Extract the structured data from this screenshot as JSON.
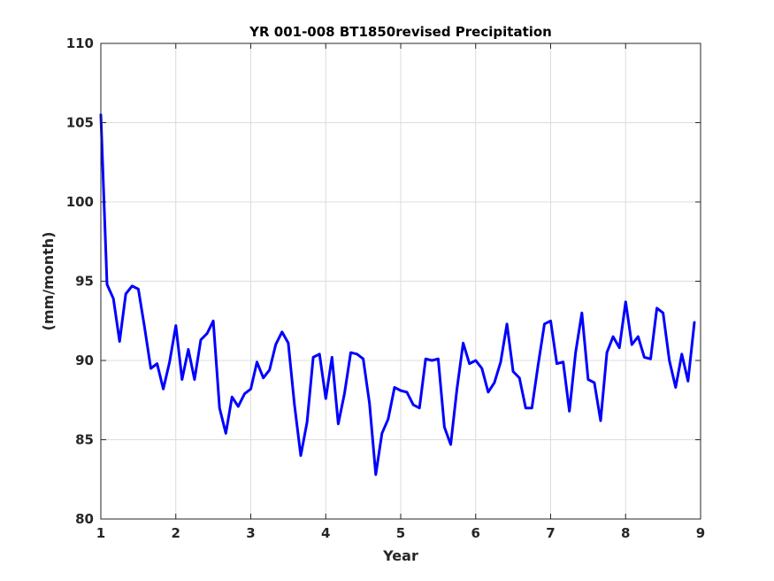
{
  "chart_data": {
    "type": "line",
    "title": "YR 001-008 BT1850revised Precipitation",
    "xlabel": "Year",
    "ylabel": "(mm/month)",
    "xlim": [
      1,
      9
    ],
    "ylim": [
      80,
      110
    ],
    "xticks": [
      1,
      2,
      3,
      4,
      5,
      6,
      7,
      8,
      9
    ],
    "yticks": [
      80,
      85,
      90,
      95,
      100,
      105,
      110
    ],
    "grid": true,
    "series": [
      {
        "color": "#0000ff",
        "x": [
          1.0,
          1.083,
          1.167,
          1.25,
          1.333,
          1.417,
          1.5,
          1.583,
          1.667,
          1.75,
          1.833,
          1.917,
          2.0,
          2.083,
          2.167,
          2.25,
          2.333,
          2.417,
          2.5,
          2.583,
          2.667,
          2.75,
          2.833,
          2.917,
          3.0,
          3.083,
          3.167,
          3.25,
          3.333,
          3.417,
          3.5,
          3.583,
          3.667,
          3.75,
          3.833,
          3.917,
          4.0,
          4.083,
          4.167,
          4.25,
          4.333,
          4.417,
          4.5,
          4.583,
          4.667,
          4.75,
          4.833,
          4.917,
          5.0,
          5.083,
          5.167,
          5.25,
          5.333,
          5.417,
          5.5,
          5.583,
          5.667,
          5.75,
          5.833,
          5.917,
          6.0,
          6.083,
          6.167,
          6.25,
          6.333,
          6.417,
          6.5,
          6.583,
          6.667,
          6.75,
          6.833,
          6.917,
          7.0,
          7.083,
          7.167,
          7.25,
          7.333,
          7.417,
          7.5,
          7.583,
          7.667,
          7.75,
          7.833,
          7.917,
          8.0,
          8.083,
          8.167,
          8.25,
          8.333,
          8.417,
          8.5,
          8.583,
          8.667,
          8.75,
          8.833,
          8.917
        ],
        "y": [
          105.5,
          94.8,
          93.9,
          91.2,
          94.2,
          94.7,
          94.5,
          92.1,
          89.5,
          89.8,
          88.2,
          89.9,
          92.2,
          88.8,
          90.7,
          88.8,
          91.3,
          91.7,
          92.5,
          87.0,
          85.4,
          87.7,
          87.1,
          87.9,
          88.2,
          89.9,
          88.9,
          89.4,
          91.0,
          91.8,
          91.1,
          87.2,
          84.0,
          86.1,
          90.2,
          90.4,
          87.6,
          90.2,
          86.0,
          87.9,
          90.5,
          90.4,
          90.1,
          87.3,
          82.8,
          85.4,
          86.3,
          88.3,
          88.1,
          88.0,
          87.2,
          87.0,
          90.1,
          90.0,
          90.1,
          85.8,
          84.7,
          88.2,
          91.1,
          89.8,
          90.0,
          89.5,
          88.0,
          88.6,
          89.9,
          92.3,
          89.3,
          88.9,
          87.0,
          87.0,
          89.7,
          92.3,
          92.5,
          89.8,
          89.9,
          86.8,
          90.5,
          93.0,
          88.8,
          88.6,
          86.2,
          90.5,
          91.5,
          90.8,
          93.7,
          91.0,
          91.5,
          90.2,
          90.1,
          93.3,
          93.0,
          90.0,
          88.3,
          90.4,
          88.7,
          92.4
        ]
      }
    ]
  }
}
